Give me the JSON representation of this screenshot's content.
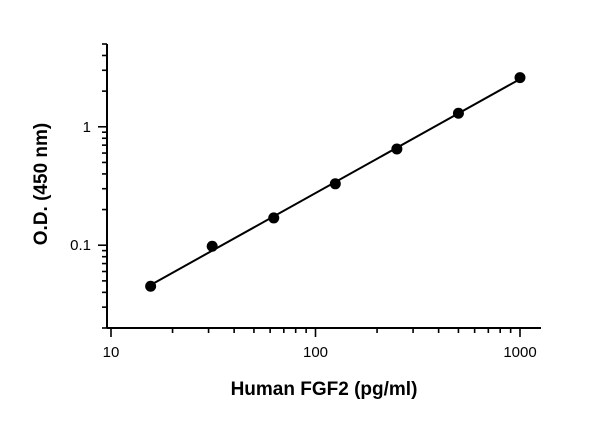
{
  "chart_data": {
    "type": "scatter",
    "title": "",
    "xlabel": "Human FGF2 (pg/ml)",
    "ylabel": "O.D. (450 nm)",
    "x_scale": "log",
    "y_scale": "log",
    "xlim": [
      10,
      1000
    ],
    "ylim": [
      0.02,
      5
    ],
    "x_ticks": [
      {
        "value": 10,
        "label": "10"
      },
      {
        "value": 100,
        "label": "100"
      },
      {
        "value": 1000,
        "label": "1000"
      }
    ],
    "y_ticks": [
      {
        "value": 0.1,
        "label": "0.1"
      },
      {
        "value": 1,
        "label": "1"
      }
    ],
    "grid": false,
    "legend": "none",
    "marker_color": "#000000",
    "line_color": "#000000",
    "series": [
      {
        "x": [
          15.625,
          31.25,
          62.5,
          125,
          250,
          500,
          1000
        ],
        "y": [
          0.045,
          0.098,
          0.17,
          0.33,
          0.65,
          1.3,
          2.6
        ],
        "fit_line": "linear (log-log)"
      }
    ]
  }
}
